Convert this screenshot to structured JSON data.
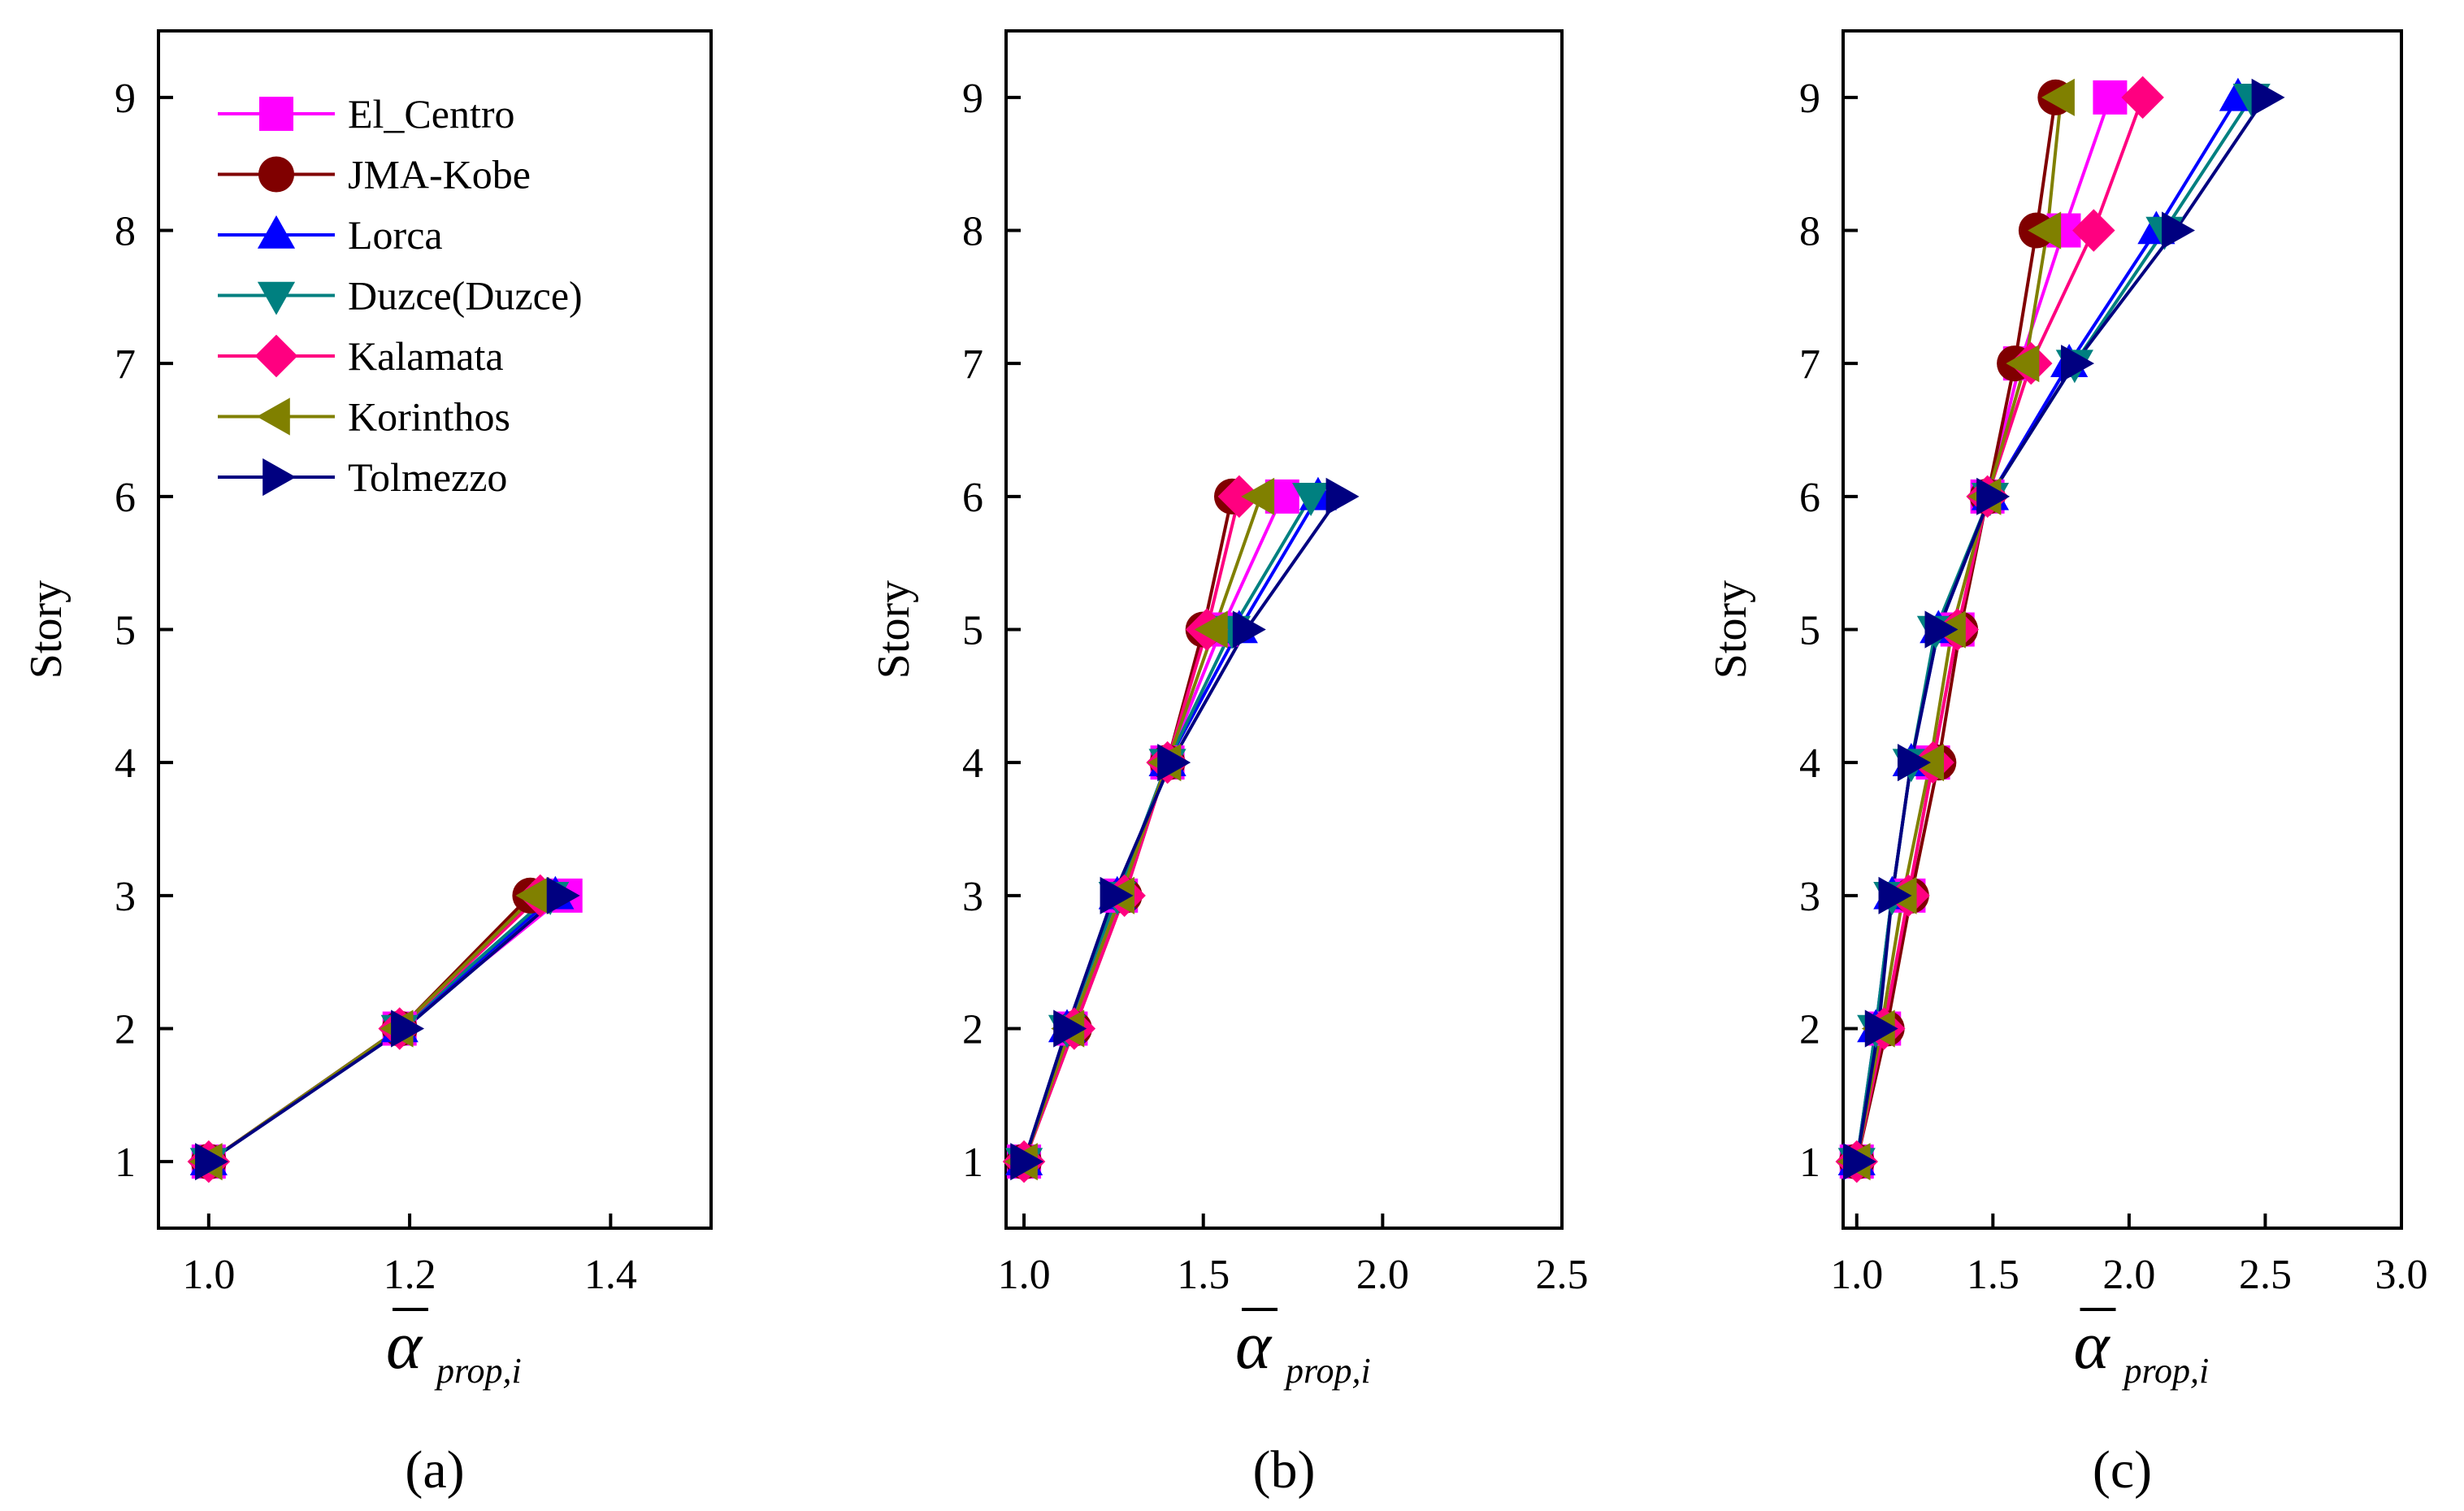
{
  "chart_data": [
    {
      "type": "line",
      "panel_label": "(a)",
      "xlabel": "α",
      "xlabel_subscript": "prop,i",
      "ylabel": "Story",
      "xlim": [
        0.95,
        1.5
      ],
      "ylim": [
        0.5,
        9.5
      ],
      "xticks": [
        "1.0",
        "1.2",
        "1.4"
      ],
      "xtick_values": [
        1.0,
        1.2,
        1.4
      ],
      "yticks": [
        "1",
        "2",
        "3",
        "4",
        "5",
        "6",
        "7",
        "8",
        "9"
      ],
      "legend_position": "top-left",
      "y": [
        1,
        2,
        3
      ],
      "series": [
        {
          "name": "El_Centro",
          "values": [
            1.0,
            1.19,
            1.355
          ]
        },
        {
          "name": "JMA-Kobe",
          "values": [
            1.0,
            1.19,
            1.32
          ]
        },
        {
          "name": "Lorca",
          "values": [
            1.0,
            1.19,
            1.345
          ]
        },
        {
          "name": "Duzce(Duzce)",
          "values": [
            1.0,
            1.19,
            1.34
          ]
        },
        {
          "name": "Kalamata",
          "values": [
            1.0,
            1.19,
            1.33
          ]
        },
        {
          "name": "Korinthos",
          "values": [
            1.0,
            1.19,
            1.325
          ]
        },
        {
          "name": "Tolmezzo",
          "values": [
            1.0,
            1.195,
            1.35
          ]
        }
      ]
    },
    {
      "type": "line",
      "panel_label": "(b)",
      "xlabel": "α",
      "xlabel_subscript": "prop,i",
      "ylabel": "Story",
      "xlim": [
        0.95,
        2.5
      ],
      "ylim": [
        0.5,
        9.5
      ],
      "xticks": [
        "1.0",
        "1.5",
        "2.0",
        "2.5"
      ],
      "xtick_values": [
        1.0,
        1.5,
        2.0,
        2.5
      ],
      "yticks": [
        "1",
        "2",
        "3",
        "4",
        "5",
        "6",
        "7",
        "8",
        "9"
      ],
      "y": [
        1,
        2,
        3,
        4,
        5,
        6
      ],
      "series": [
        {
          "name": "El_Centro",
          "values": [
            1.0,
            1.13,
            1.27,
            1.4,
            1.55,
            1.72
          ]
        },
        {
          "name": "JMA-Kobe",
          "values": [
            1.0,
            1.14,
            1.28,
            1.4,
            1.5,
            1.58
          ]
        },
        {
          "name": "Lorca",
          "values": [
            1.0,
            1.12,
            1.26,
            1.4,
            1.6,
            1.82
          ]
        },
        {
          "name": "Duzce(Duzce)",
          "values": [
            1.0,
            1.12,
            1.26,
            1.4,
            1.58,
            1.8
          ]
        },
        {
          "name": "Kalamata",
          "values": [
            1.0,
            1.14,
            1.28,
            1.4,
            1.51,
            1.6
          ]
        },
        {
          "name": "Korinthos",
          "values": [
            1.0,
            1.13,
            1.27,
            1.4,
            1.53,
            1.66
          ]
        },
        {
          "name": "Tolmezzo",
          "values": [
            1.0,
            1.12,
            1.25,
            1.41,
            1.62,
            1.88
          ]
        }
      ]
    },
    {
      "type": "line",
      "panel_label": "(c)",
      "xlabel": "α",
      "xlabel_subscript": "prop,i",
      "ylabel": "Story",
      "xlim": [
        0.95,
        3.0
      ],
      "ylim": [
        0.5,
        9.5
      ],
      "xticks": [
        "1.0",
        "1.5",
        "2.0",
        "2.5",
        "3.0"
      ],
      "xtick_values": [
        1.0,
        1.5,
        2.0,
        2.5,
        3.0
      ],
      "yticks": [
        "1",
        "2",
        "3",
        "4",
        "5",
        "6",
        "7",
        "8",
        "9"
      ],
      "y": [
        1,
        2,
        3,
        4,
        5,
        6,
        7,
        8,
        9
      ],
      "series": [
        {
          "name": "El_Centro",
          "values": [
            1.0,
            1.1,
            1.19,
            1.28,
            1.37,
            1.48,
            1.6,
            1.76,
            1.93
          ]
        },
        {
          "name": "JMA-Kobe",
          "values": [
            1.0,
            1.11,
            1.2,
            1.3,
            1.38,
            1.48,
            1.58,
            1.66,
            1.73
          ]
        },
        {
          "name": "Lorca",
          "values": [
            1.0,
            1.07,
            1.13,
            1.2,
            1.3,
            1.49,
            1.78,
            2.1,
            2.4
          ]
        },
        {
          "name": "Duzce(Duzce)",
          "values": [
            1.0,
            1.07,
            1.13,
            1.2,
            1.29,
            1.49,
            1.8,
            2.13,
            2.45
          ]
        },
        {
          "name": "Kalamata",
          "values": [
            1.0,
            1.1,
            1.19,
            1.28,
            1.37,
            1.48,
            1.64,
            1.87,
            2.05
          ]
        },
        {
          "name": "Korinthos",
          "values": [
            1.0,
            1.09,
            1.17,
            1.27,
            1.35,
            1.48,
            1.62,
            1.7,
            1.75
          ]
        },
        {
          "name": "Tolmezzo",
          "values": [
            1.0,
            1.08,
            1.13,
            1.2,
            1.3,
            1.49,
            1.8,
            2.17,
            2.5
          ]
        }
      ]
    }
  ],
  "legend": [
    "El_Centro",
    "JMA-Kobe",
    "Lorca",
    "Duzce(Duzce)",
    "Kalamata",
    "Korinthos",
    "Tolmezzo"
  ],
  "series_style": [
    {
      "name": "El_Centro",
      "color": "#FF00FF",
      "marker": "square"
    },
    {
      "name": "JMA-Kobe",
      "color": "#800000",
      "marker": "circle"
    },
    {
      "name": "Lorca",
      "color": "#0000FF",
      "marker": "triangle-up"
    },
    {
      "name": "Duzce(Duzce)",
      "color": "#008080",
      "marker": "triangle-down"
    },
    {
      "name": "Kalamata",
      "color": "#FF0080",
      "marker": "diamond"
    },
    {
      "name": "Korinthos",
      "color": "#808000",
      "marker": "triangle-left"
    },
    {
      "name": "Tolmezzo",
      "color": "#000080",
      "marker": "triangle-right"
    }
  ]
}
